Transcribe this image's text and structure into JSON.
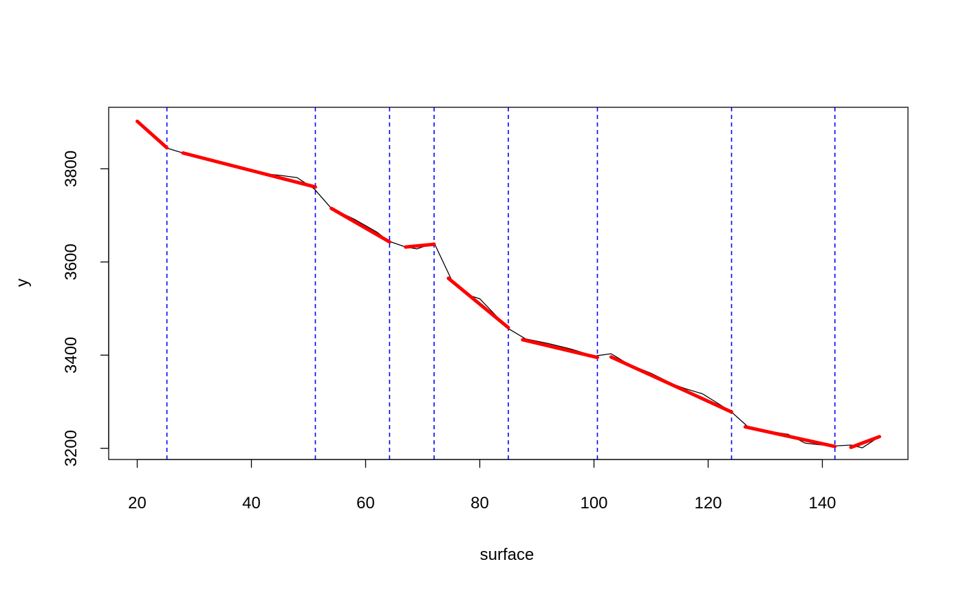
{
  "chart_data": {
    "type": "line",
    "xlabel": "surface",
    "ylabel": "y",
    "xlim": [
      15,
      155
    ],
    "ylim": [
      3176,
      3932
    ],
    "x_ticks": [
      20,
      40,
      60,
      80,
      100,
      120,
      140
    ],
    "y_ticks": [
      3200,
      3400,
      3600,
      3800
    ],
    "grid": false,
    "colors": {
      "raw": "#000000",
      "fit": "#ff0000",
      "breakpoints": "#0000ff"
    },
    "series": [
      {
        "role": "observed",
        "x": [
          20,
          25,
          28,
          33,
          38,
          41,
          45,
          48,
          49,
          51,
          54,
          58,
          62,
          64,
          67,
          69,
          72,
          75,
          78,
          80,
          85,
          88,
          92,
          96,
          100,
          103,
          106,
          110,
          114,
          116,
          119,
          124,
          127,
          130,
          134,
          137,
          140,
          142,
          145,
          147,
          150
        ],
        "y": [
          3902,
          3845,
          3834,
          3819,
          3805,
          3791,
          3786,
          3781,
          3773,
          3757,
          3715,
          3692,
          3664,
          3645,
          3632,
          3628,
          3641,
          3563,
          3529,
          3521,
          3457,
          3435,
          3425,
          3413,
          3398,
          3403,
          3381,
          3361,
          3337,
          3328,
          3317,
          3279,
          3246,
          3238,
          3230,
          3211,
          3207,
          3205,
          3207,
          3201,
          3225
        ]
      },
      {
        "role": "fitted",
        "segments": [
          {
            "x": [
              20,
              25.2
            ],
            "y": [
              3902,
              3845
            ]
          },
          {
            "x": [
              28,
              51.2
            ],
            "y": [
              3834,
              3761
            ]
          },
          {
            "x": [
              54,
              64.2
            ],
            "y": [
              3715,
              3643
            ]
          },
          {
            "x": [
              67,
              72
            ],
            "y": [
              3632,
              3638
            ]
          },
          {
            "x": [
              74.5,
              85
            ],
            "y": [
              3565,
              3459
            ]
          },
          {
            "x": [
              87.5,
              100.6
            ],
            "y": [
              3433,
              3395
            ]
          },
          {
            "x": [
              103,
              124.1
            ],
            "y": [
              3396,
              3278
            ]
          },
          {
            "x": [
              126.5,
              142.2
            ],
            "y": [
              3246,
              3204
            ]
          },
          {
            "x": [
              145,
              150
            ],
            "y": [
              3202,
              3225
            ]
          }
        ]
      }
    ],
    "breakpoints": [
      25.2,
      51.2,
      64.2,
      72,
      85,
      100.6,
      124.1,
      142.2
    ]
  }
}
